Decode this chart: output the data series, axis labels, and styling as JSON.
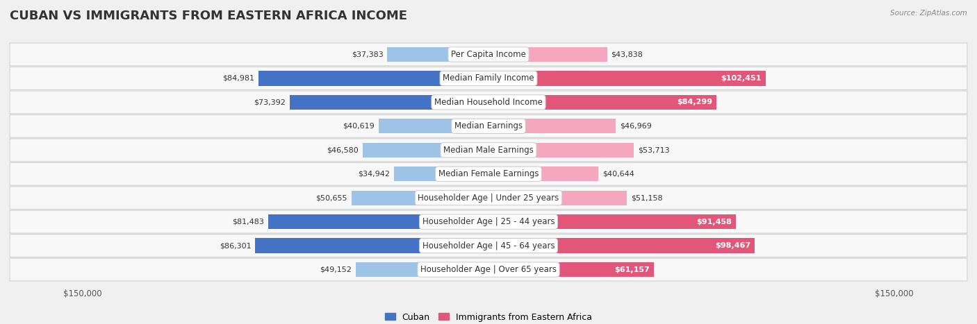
{
  "title": "CUBAN VS IMMIGRANTS FROM EASTERN AFRICA INCOME",
  "source": "Source: ZipAtlas.com",
  "categories": [
    "Per Capita Income",
    "Median Family Income",
    "Median Household Income",
    "Median Earnings",
    "Median Male Earnings",
    "Median Female Earnings",
    "Householder Age | Under 25 years",
    "Householder Age | 25 - 44 years",
    "Householder Age | 45 - 64 years",
    "Householder Age | Over 65 years"
  ],
  "cuban_values": [
    37383,
    84981,
    73392,
    40619,
    46580,
    34942,
    50655,
    81483,
    86301,
    49152
  ],
  "eastern_africa_values": [
    43838,
    102451,
    84299,
    46969,
    53713,
    40644,
    51158,
    91458,
    98467,
    61157
  ],
  "cuban_color_dark": "#4472c4",
  "cuban_color_light": "#9dc3e6",
  "eastern_africa_color_dark": "#e2567a",
  "eastern_africa_color_light": "#f4a7bf",
  "background_color": "#f0f0f0",
  "row_bg_light": "#fafafa",
  "row_bg_dark": "#ececec",
  "max_value": 150000,
  "title_fontsize": 13,
  "label_fontsize": 8.5,
  "value_fontsize": 8,
  "legend_fontsize": 9,
  "large_threshold": 60000
}
